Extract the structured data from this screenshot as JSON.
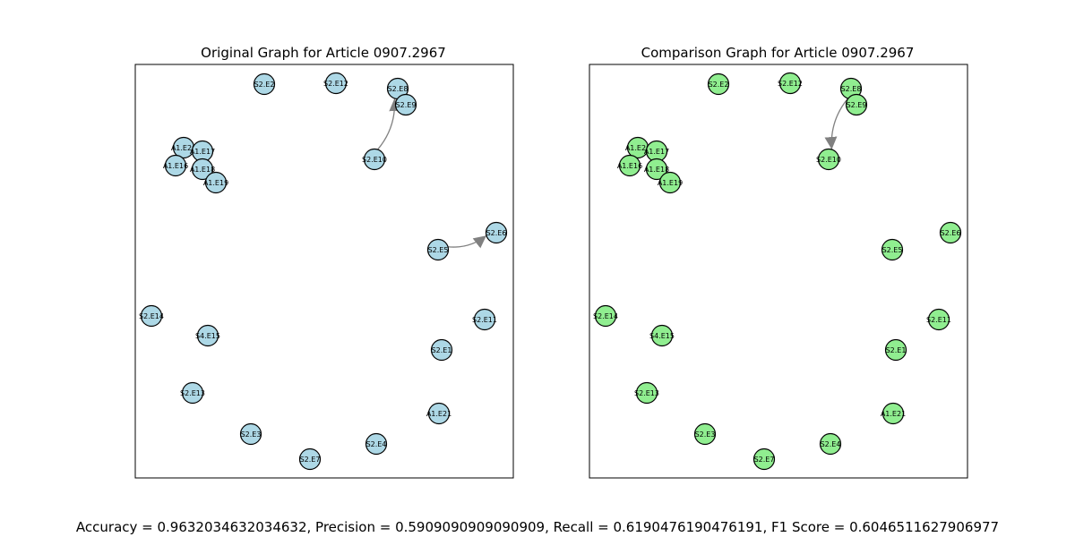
{
  "panels": [
    {
      "id": "original",
      "title": "Original Graph for Article 0907.2967",
      "node_color": "#add8e6",
      "nodes": [
        "S2.E2",
        "S2.E12",
        "S2.E8",
        "S2.E9",
        "A1.E20",
        "A1.E17",
        "A1.E16",
        "A1.E18",
        "A1.E19",
        "S2.E10",
        "S2.E5",
        "S2.E6",
        "S2.E14",
        "S4.E15",
        "S2.E11",
        "S2.E1",
        "S2.E13",
        "A1.E21",
        "S2.E3",
        "S2.E4",
        "S2.E7"
      ],
      "edges": [
        {
          "from": "S2.E10",
          "to": "S2.E8"
        },
        {
          "from": "S2.E5",
          "to": "S2.E6"
        },
        {
          "from": "A1.E17",
          "to": "A1.E20"
        }
      ]
    },
    {
      "id": "comparison",
      "title": "Comparison Graph for Article 0907.2967",
      "node_color": "#90ee90",
      "nodes": [
        "S2.E2",
        "S2.E12",
        "S2.E8",
        "S2.E9",
        "A1.E20",
        "A1.E17",
        "A1.E16",
        "A1.E18",
        "A1.E19",
        "S2.E10",
        "S2.E5",
        "S2.E6",
        "S2.E14",
        "S4.E15",
        "S2.E11",
        "S2.E1",
        "S2.E13",
        "A1.E21",
        "S2.E3",
        "S2.E4",
        "S2.E7"
      ],
      "edges": [
        {
          "from": "S2.E8",
          "to": "S2.E10"
        }
      ]
    }
  ],
  "metrics_text": "Accuracy = 0.9632034632034632, Precision = 0.5909090909090909, Recall = 0.6190476190476191, F1 Score = 0.6046511627906977",
  "edge_color": "#808080"
}
